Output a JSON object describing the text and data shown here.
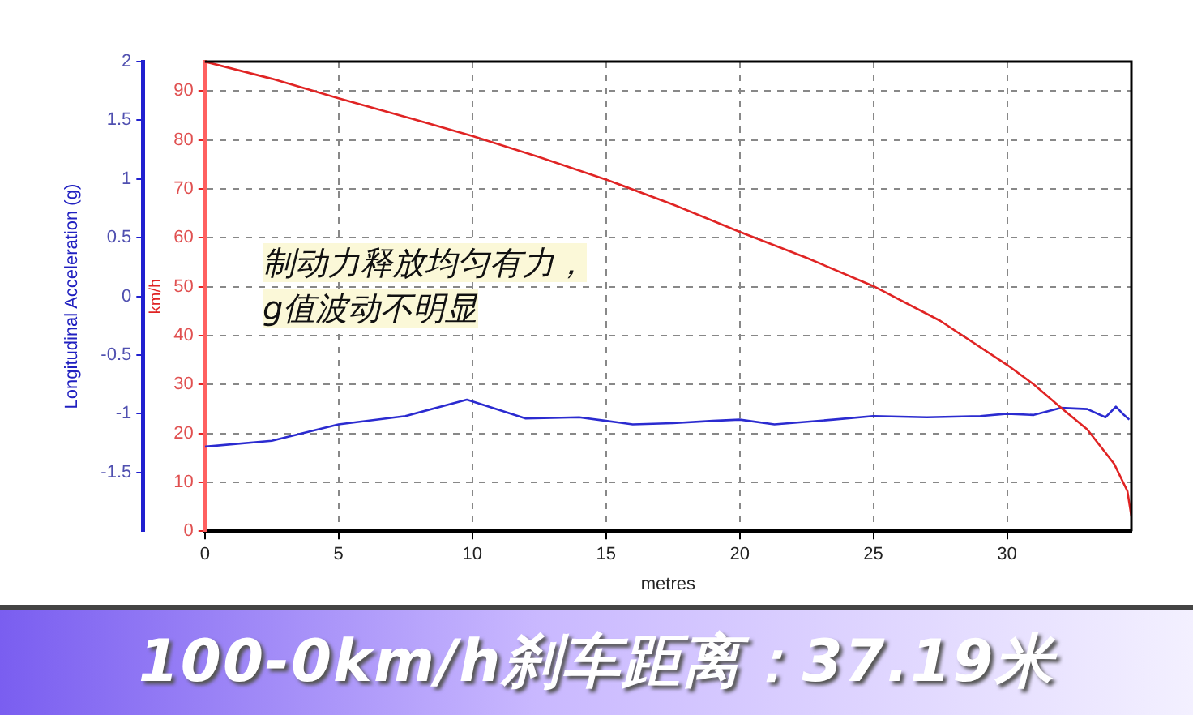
{
  "chart_data": {
    "type": "line",
    "title": "100-0km/h刹车距离：37.19米",
    "xlabel": "metres",
    "ylabel": "km/h",
    "y2label": "Longitudinal Acceleration (g)",
    "annotations": [
      "制动力释放均匀有力，\ng值波动不明显"
    ],
    "xlim": [
      0,
      34.65
    ],
    "xticks": [
      0,
      5,
      10,
      15,
      20,
      25,
      30
    ],
    "ylim": [
      0,
      96
    ],
    "yticks": [
      0,
      10,
      20,
      30,
      40,
      50,
      60,
      70,
      80,
      90
    ],
    "y2lim": [
      -2,
      2
    ],
    "y2ticks": [
      -1.5,
      -1,
      -0.5,
      0,
      0.5,
      1,
      1.5,
      2
    ],
    "grid": true,
    "legend": false,
    "marker": "none",
    "line_style": "solid",
    "series": [
      {
        "color": "#e02424",
        "x": [
          0,
          2.5,
          5,
          7.5,
          10,
          12.5,
          15,
          17.5,
          20,
          22.5,
          25,
          27.5,
          30,
          31,
          32,
          33,
          34,
          34.5,
          34.65
        ],
        "values": [
          96,
          92.5,
          88.5,
          84.7,
          80.8,
          76.5,
          71.9,
          66.8,
          61.2,
          55.9,
          50.1,
          43,
          34,
          30,
          25.3,
          20.8,
          13.8,
          8.2,
          3
        ]
      },
      {
        "color": "#2b2bd0",
        "axis": "y2",
        "x": [
          0,
          2.5,
          5,
          7.5,
          9.8,
          12,
          14,
          15,
          16,
          17.5,
          19,
          20,
          21.3,
          23.5,
          25,
          27,
          29,
          30,
          31,
          32,
          33,
          33.68,
          34.07,
          34.37,
          34.57
        ],
        "values": [
          -1.28,
          -1.23,
          -1.09,
          -1.02,
          -0.88,
          -1.04,
          -1.03,
          -1.06,
          -1.09,
          -1.08,
          -1.06,
          -1.05,
          -1.09,
          -1.05,
          -1.02,
          -1.03,
          -1.02,
          -1,
          -1.01,
          -0.95,
          -0.96,
          -1.03,
          -0.94,
          -1.01,
          -1.05
        ]
      }
    ]
  }
}
